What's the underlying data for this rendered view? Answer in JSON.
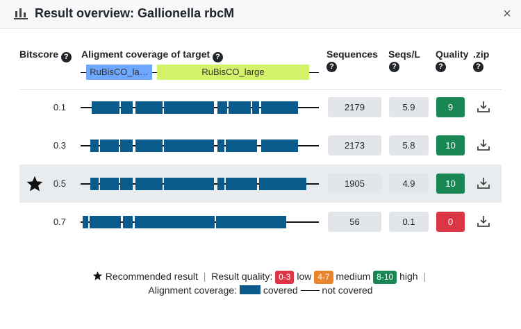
{
  "header": {
    "title": "Result overview: Gallionella rbcM",
    "icon": "bar-chart-icon",
    "close_label": "×"
  },
  "columns": {
    "bitscore": "Bitscore",
    "coverage": "Aligment coverage of target",
    "sequences": "Sequences",
    "seqs_per_l": "Seqs/L",
    "quality": "Quality",
    "zip": ".zip",
    "help": "?"
  },
  "domains": [
    {
      "label": "RuBisCO_la…",
      "full_label": "RuBisCO_la…",
      "color": "#6ea8fe"
    },
    {
      "label": "RuBisCO_large",
      "color": "#d4f16a"
    }
  ],
  "rows": [
    {
      "bitscore": "0.1",
      "sequences": "2179",
      "seqs_per_l": "5.9",
      "quality": "9",
      "quality_level": "high",
      "recommended": false
    },
    {
      "bitscore": "0.3",
      "sequences": "2173",
      "seqs_per_l": "5.8",
      "quality": "10",
      "quality_level": "high",
      "recommended": false
    },
    {
      "bitscore": "0.5",
      "sequences": "1905",
      "seqs_per_l": "4.9",
      "quality": "10",
      "quality_level": "high",
      "recommended": true
    },
    {
      "bitscore": "0.7",
      "sequences": "56",
      "seqs_per_l": "0.1",
      "quality": "0",
      "quality_level": "low",
      "recommended": false
    }
  ],
  "legend": {
    "recommended": "Recommended result",
    "quality_label": "Result quality:",
    "low_range": "0-3",
    "low": "low",
    "medium_range": "4-7",
    "medium": "medium",
    "high_range": "8-10",
    "high": "high",
    "coverage_label": "Alignment coverage:",
    "covered": "covered",
    "not_covered": "not covered"
  },
  "colors": {
    "low": "#dc3545",
    "medium": "#e8842c",
    "high": "#198754",
    "covered": "#0b5a8c"
  }
}
